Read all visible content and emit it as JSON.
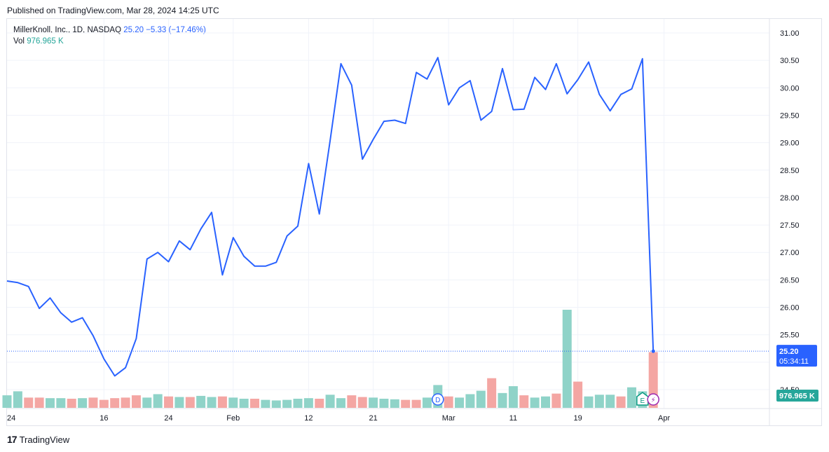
{
  "header": {
    "published": "Published on TradingView.com, Mar 28, 2024 14:25 UTC"
  },
  "legend": {
    "symbol": "MillerKnoll, Inc., 1D, NASDAQ",
    "last": "25.20",
    "change": "−5.33 (−17.46%)",
    "vol_label": "Vol",
    "vol_value": "976.965 K"
  },
  "footer": {
    "brand": "TradingView",
    "logo": "17"
  },
  "colors": {
    "line": "#2962ff",
    "up_volume": "#8fd3c8",
    "down_volume": "#f4a6a3",
    "grid": "#f0f3fa",
    "axis_text": "#131722",
    "price_label_bg": "#2962ff",
    "volume_label_bg": "#26a69a"
  },
  "chart_data": {
    "type": "line",
    "ylim": [
      24.3,
      31.4
    ],
    "y_ticks": [
      "24.50",
      "25.00",
      "25.50",
      "26.00",
      "26.50",
      "27.00",
      "27.50",
      "28.00",
      "28.50",
      "29.00",
      "29.50",
      "30.00",
      "30.50",
      "31.00"
    ],
    "x_ticks": [
      {
        "index": 0,
        "label": "24"
      },
      {
        "index": 9,
        "label": "16"
      },
      {
        "index": 15,
        "label": "24"
      },
      {
        "index": 21,
        "label": "Feb"
      },
      {
        "index": 28,
        "label": "12"
      },
      {
        "index": 34,
        "label": "21"
      },
      {
        "index": 41,
        "label": "Mar"
      },
      {
        "index": 47,
        "label": "11"
      },
      {
        "index": 53,
        "label": "19"
      },
      {
        "index": 61,
        "label": "Apr"
      }
    ],
    "series": [
      {
        "values": [
          26.48,
          26.45,
          26.38,
          25.98,
          26.17,
          25.9,
          25.73,
          25.81,
          25.48,
          25.06,
          24.75,
          24.9,
          25.43,
          26.88,
          27.0,
          26.83,
          27.21,
          27.05,
          27.43,
          27.73,
          26.59,
          27.27,
          26.93,
          26.75,
          26.75,
          26.82,
          27.3,
          27.48,
          28.62,
          27.7,
          29.04,
          30.44,
          30.05,
          28.7,
          29.06,
          29.39,
          29.41,
          29.35,
          30.28,
          30.16,
          30.55,
          29.69,
          30.0,
          30.13,
          29.41,
          29.57,
          30.35,
          29.6,
          29.61,
          30.19,
          29.97,
          30.44,
          29.89,
          30.15,
          30.47,
          29.88,
          29.58,
          29.88,
          29.98,
          30.53,
          25.2
        ]
      }
    ],
    "volume": {
      "values": [
        0.22,
        0.29,
        0.18,
        0.18,
        0.17,
        0.17,
        0.16,
        0.17,
        0.18,
        0.14,
        0.17,
        0.18,
        0.22,
        0.18,
        0.24,
        0.2,
        0.19,
        0.19,
        0.21,
        0.19,
        0.2,
        0.18,
        0.16,
        0.16,
        0.14,
        0.13,
        0.14,
        0.16,
        0.17,
        0.16,
        0.23,
        0.17,
        0.22,
        0.19,
        0.18,
        0.16,
        0.15,
        0.14,
        0.14,
        0.18,
        0.4,
        0.2,
        0.18,
        0.24,
        0.3,
        0.52,
        0.26,
        0.38,
        0.22,
        0.18,
        0.2,
        0.25,
        1.72,
        0.46,
        0.2,
        0.23,
        0.23,
        0.2,
        0.36,
        0.29,
        0.976965
      ],
      "up": [
        true,
        true,
        false,
        false,
        true,
        true,
        false,
        true,
        false,
        false,
        false,
        false,
        false,
        true,
        true,
        false,
        true,
        false,
        true,
        true,
        false,
        true,
        true,
        false,
        true,
        true,
        true,
        true,
        true,
        false,
        true,
        true,
        false,
        false,
        true,
        true,
        true,
        false,
        false,
        true,
        true,
        false,
        true,
        true,
        true,
        false,
        true,
        true,
        false,
        true,
        true,
        false,
        true,
        false,
        true,
        true,
        true,
        false,
        true,
        true,
        false
      ]
    },
    "last_price_label": "25.20",
    "countdown_label": "05:34:11",
    "volume_axis_tick": "24.50",
    "markers": [
      {
        "index": 40,
        "letter": "D",
        "kind": "dividend"
      },
      {
        "index": 59,
        "letter": "E",
        "kind": "earnings"
      },
      {
        "index": 60,
        "letter": "⚡",
        "kind": "split"
      }
    ]
  }
}
